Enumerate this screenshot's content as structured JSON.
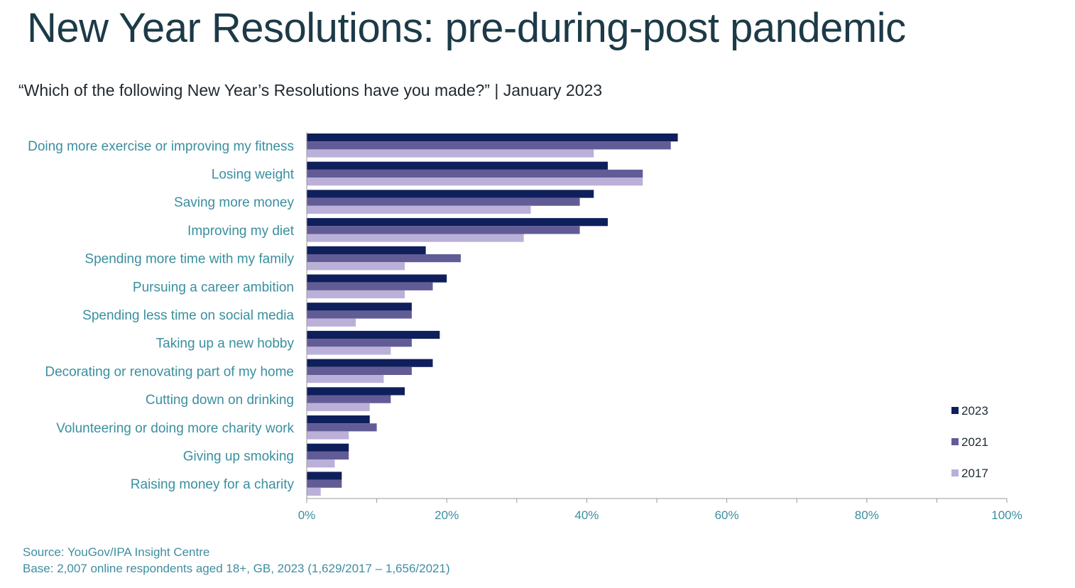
{
  "title": "New Year Resolutions: pre-during-post pandemic",
  "subtitle": "“Which of the following New Year’s Resolutions have you made?” | January 2023",
  "footer": {
    "source": "Source: YouGov/IPA Insight Centre",
    "base": "Base: 2,007 online respondents aged 18+, GB, 2023 (1,629/2017 – 1,656/2021)"
  },
  "colors": {
    "2023": "#0f1f5c",
    "2021": "#625c96",
    "2017": "#bbb0d8",
    "category_label": "#3a8f9f",
    "axis": "#9a9a9a",
    "tick_label": "#3a8f9f"
  },
  "chart_data": {
    "type": "bar",
    "orientation": "horizontal",
    "categories": [
      "Doing more exercise or improving my fitness",
      "Losing weight",
      "Saving more money",
      "Improving my diet",
      "Spending more time with my family",
      "Pursuing a career ambition",
      "Spending less time on social media",
      "Taking up a new hobby",
      "Decorating or renovating part of my home",
      "Cutting down on drinking",
      "Volunteering or doing more charity work",
      "Giving up smoking",
      "Raising money for a charity"
    ],
    "series": [
      {
        "name": "2023",
        "values": [
          53,
          43,
          41,
          43,
          17,
          20,
          15,
          19,
          18,
          14,
          9,
          6,
          5
        ]
      },
      {
        "name": "2021",
        "values": [
          52,
          48,
          39,
          39,
          22,
          18,
          15,
          15,
          15,
          12,
          10,
          6,
          5
        ]
      },
      {
        "name": "2017",
        "values": [
          41,
          48,
          32,
          31,
          14,
          14,
          7,
          12,
          11,
          9,
          6,
          4,
          2
        ]
      }
    ],
    "xlim": [
      0,
      100
    ],
    "xticks": [
      0,
      20,
      40,
      60,
      80,
      100
    ],
    "xtick_labels": [
      "0%",
      "20%",
      "40%",
      "60%",
      "80%",
      "100%"
    ],
    "minor_tick_step": 10,
    "legend": {
      "position": "right",
      "entries": [
        "2023",
        "2021",
        "2017"
      ]
    },
    "grid": false
  }
}
